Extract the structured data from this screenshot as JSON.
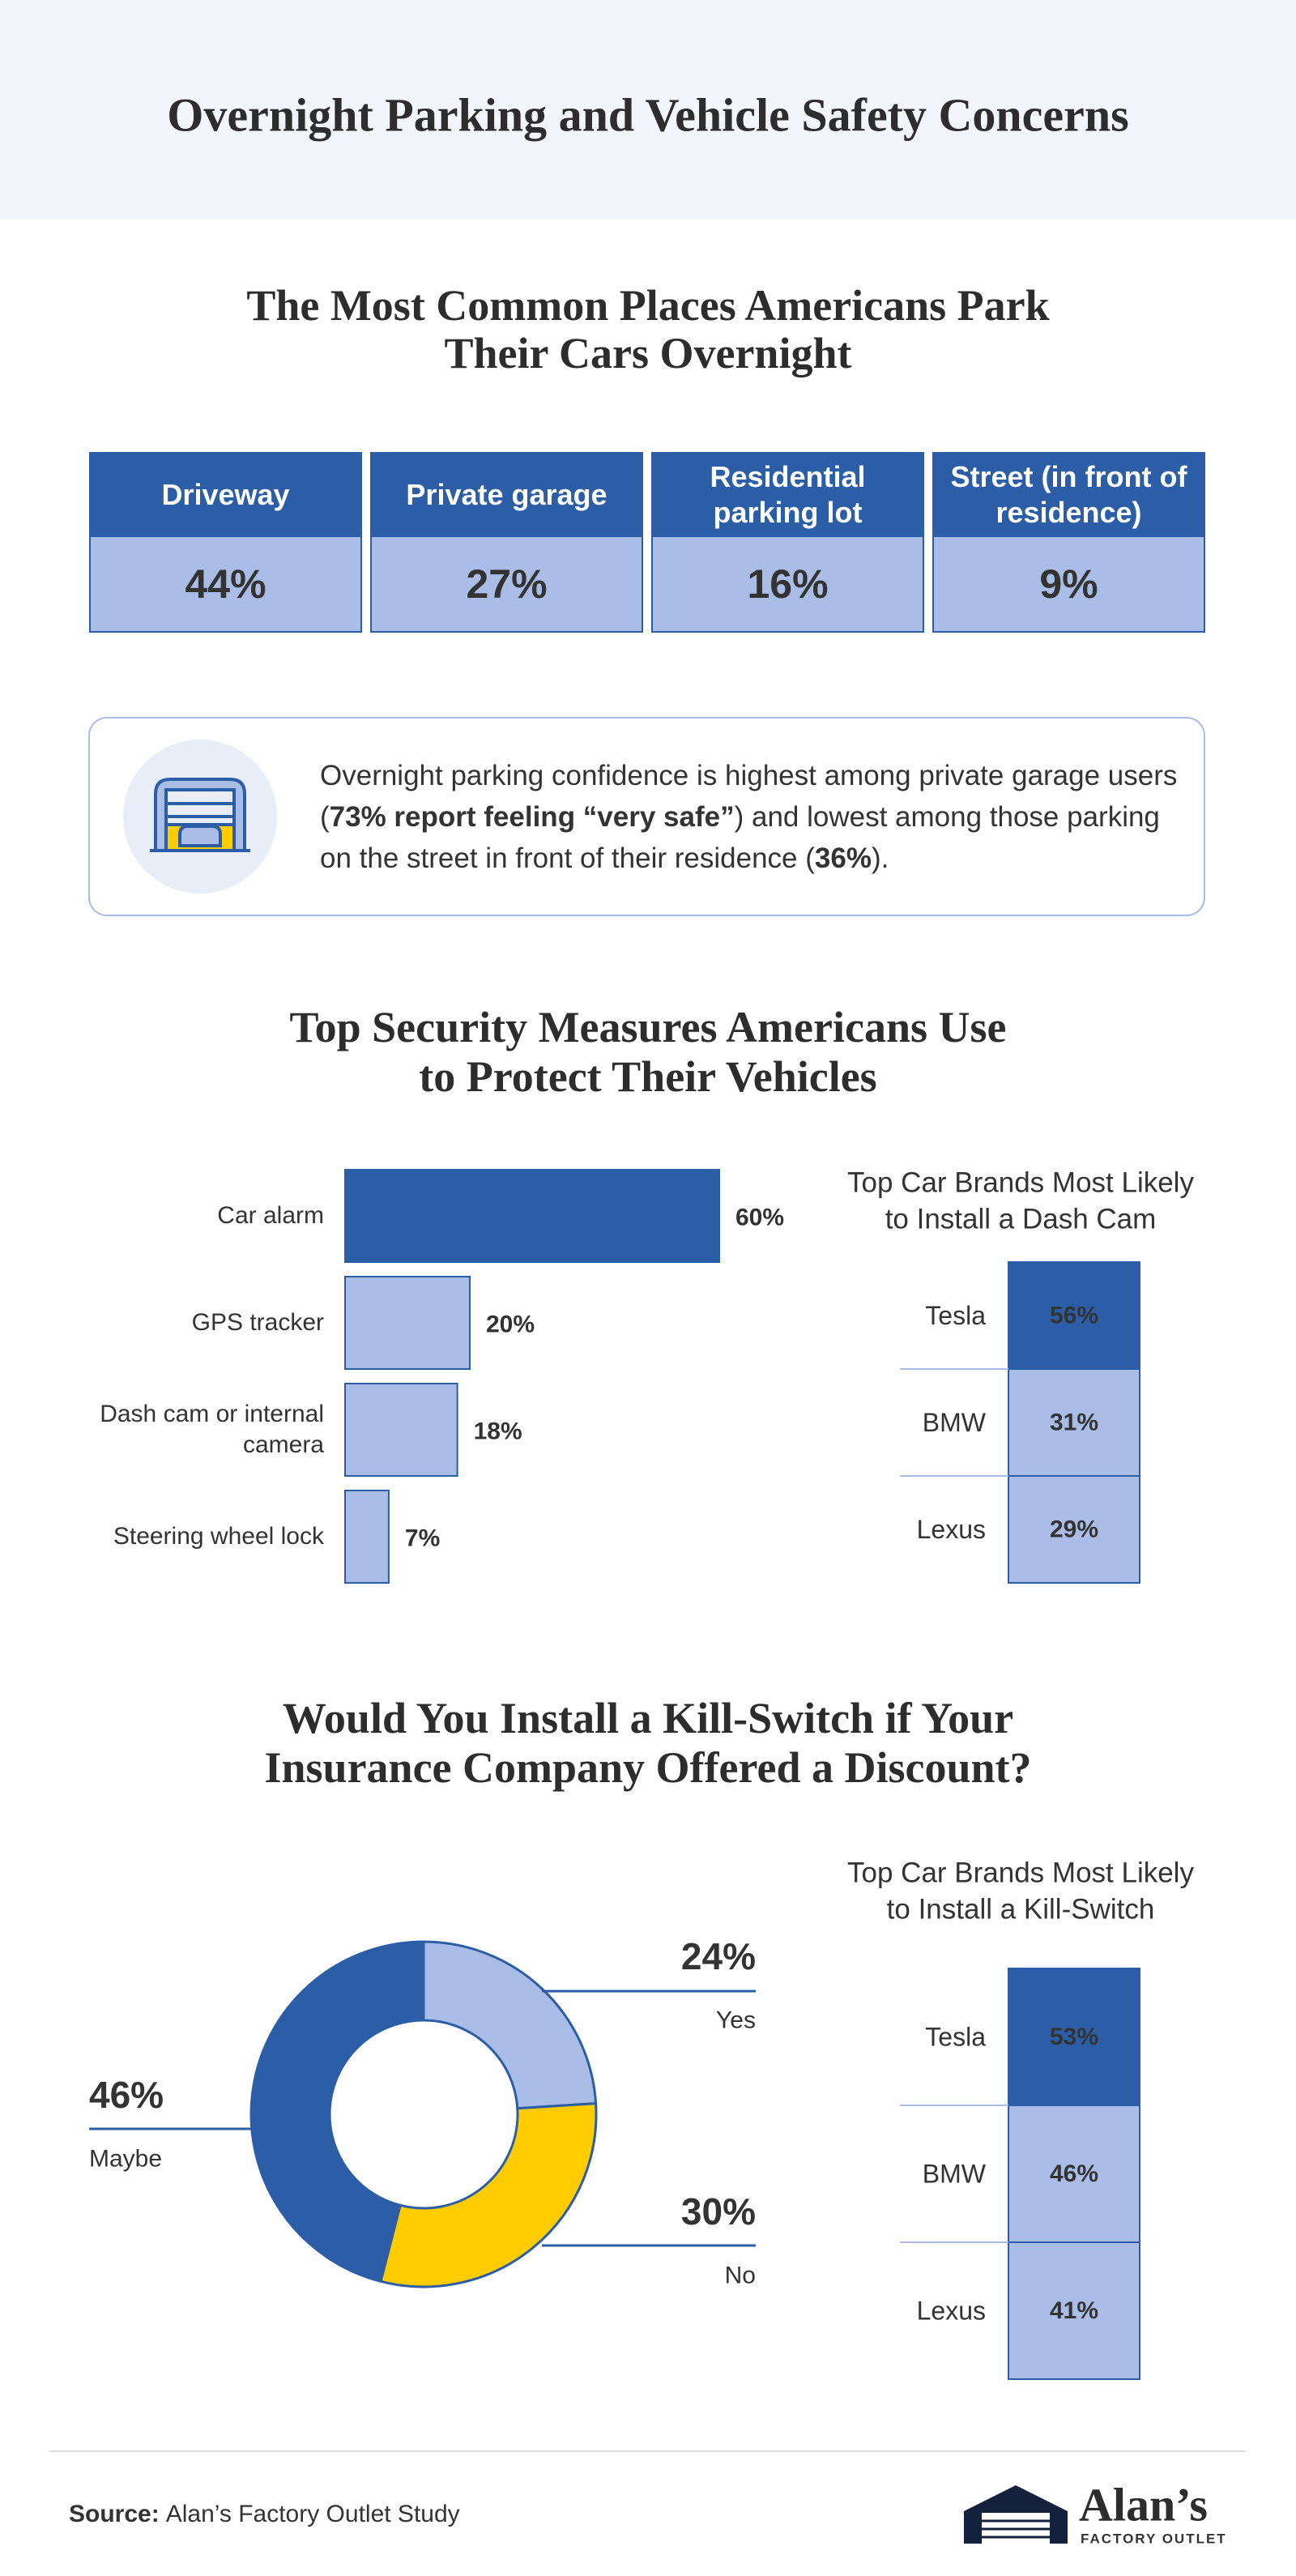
{
  "title": "Overnight Parking and Vehicle Safety Concerns",
  "parking": {
    "title": [
      "The Most Common Places Americans Park",
      "Their Cars Overnight"
    ],
    "table": {
      "header": [
        "Driveway",
        "Private garage",
        "Residential parking lot",
        "Street (in front of residence)"
      ],
      "rows": [
        [
          "44%",
          "27%",
          "16%",
          "9%"
        ]
      ]
    }
  },
  "callout": {
    "parts": [
      {
        "text": "Overnight parking confidence is highest among private garage users ("
      },
      {
        "text": "73% report feeling “very safe”",
        "bold": true
      },
      {
        "text": ") and lowest among those parking on the street in front of their residence ("
      },
      {
        "text": "36%",
        "bold": true
      },
      {
        "text": ")."
      }
    ]
  },
  "chart_data": [
    {
      "type": "hbar",
      "title": [
        "Top Security Measures Americans Use",
        "to Protect Their Vehicles"
      ],
      "categories": [
        "Car alarm",
        "GPS tracker",
        "Dash cam or internal camera",
        "Steering wheel lock"
      ],
      "values": [
        60,
        20,
        18,
        7
      ],
      "value_labels": [
        "60%",
        "20%",
        "18%",
        "7%"
      ],
      "colors": [
        "#2c5ea8",
        "#aabde6",
        "#aabde6",
        "#aabde6"
      ]
    },
    {
      "type": "cells",
      "title": [
        "Top Car Brands Most Likely",
        "to Install a Dash Cam"
      ],
      "categories": [
        "Tesla",
        "BMW",
        "Lexus"
      ],
      "values": [
        56,
        31,
        29
      ],
      "value_labels": [
        "56%",
        "31%",
        "29%"
      ],
      "colors": [
        "#2c5ea8",
        "#aabde6",
        "#aabde6"
      ]
    },
    {
      "type": "donut",
      "title": [
        "Would You Install a Kill-Switch if Your",
        "Insurance Company Offered a Discount?"
      ],
      "categories": [
        "Yes",
        "No",
        "Maybe"
      ],
      "values": [
        24,
        30,
        46
      ],
      "value_labels": [
        "24%",
        "30%",
        "46%"
      ],
      "colors": [
        "#aabde6",
        "#ffcc00",
        "#2c5ea8"
      ]
    },
    {
      "type": "cells",
      "title": [
        "Top Car Brands Most Likely",
        "to Install a Kill-Switch"
      ],
      "categories": [
        "Tesla",
        "BMW",
        "Lexus"
      ],
      "values": [
        53,
        46,
        41
      ],
      "value_labels": [
        "53%",
        "46%",
        "41%"
      ],
      "colors": [
        "#2c5ea8",
        "#aabde6",
        "#aabde6"
      ]
    }
  ],
  "footer": {
    "source_label": "Source:",
    "source": "Alan’s Factory Outlet Study",
    "logo": {
      "name": "Alan’s",
      "tagline": "FACTORY OUTLET"
    }
  }
}
